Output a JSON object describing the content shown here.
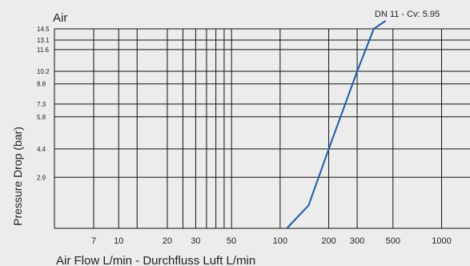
{
  "chart_data": {
    "type": "line",
    "title": "Air",
    "xlabel": "Air Flow L/min - Durchfluss Luft L/min",
    "ylabel": "Pressure Drop (bar)",
    "x_scale": "log",
    "xlim": [
      4,
      1500
    ],
    "x_ticks": [
      7,
      10,
      20,
      30,
      50,
      100,
      200,
      300,
      500,
      1000
    ],
    "x_gridlines": [
      7,
      10,
      13,
      20,
      25,
      30,
      35,
      40,
      45,
      50,
      100,
      200,
      300,
      500,
      1000
    ],
    "y_ticks": [
      2.9,
      4.4,
      5.8,
      7.3,
      8.8,
      10.2,
      11.6,
      13.1,
      14.5
    ],
    "grid": true,
    "series": [
      {
        "name": "DN 11 - Cv: 5.95",
        "color": "#1f5aa8",
        "x": [
          110,
          150,
          200,
          300,
          380,
          450
        ],
        "y": [
          0,
          1.3,
          4.4,
          10.2,
          14.5,
          16.0
        ]
      }
    ]
  }
}
